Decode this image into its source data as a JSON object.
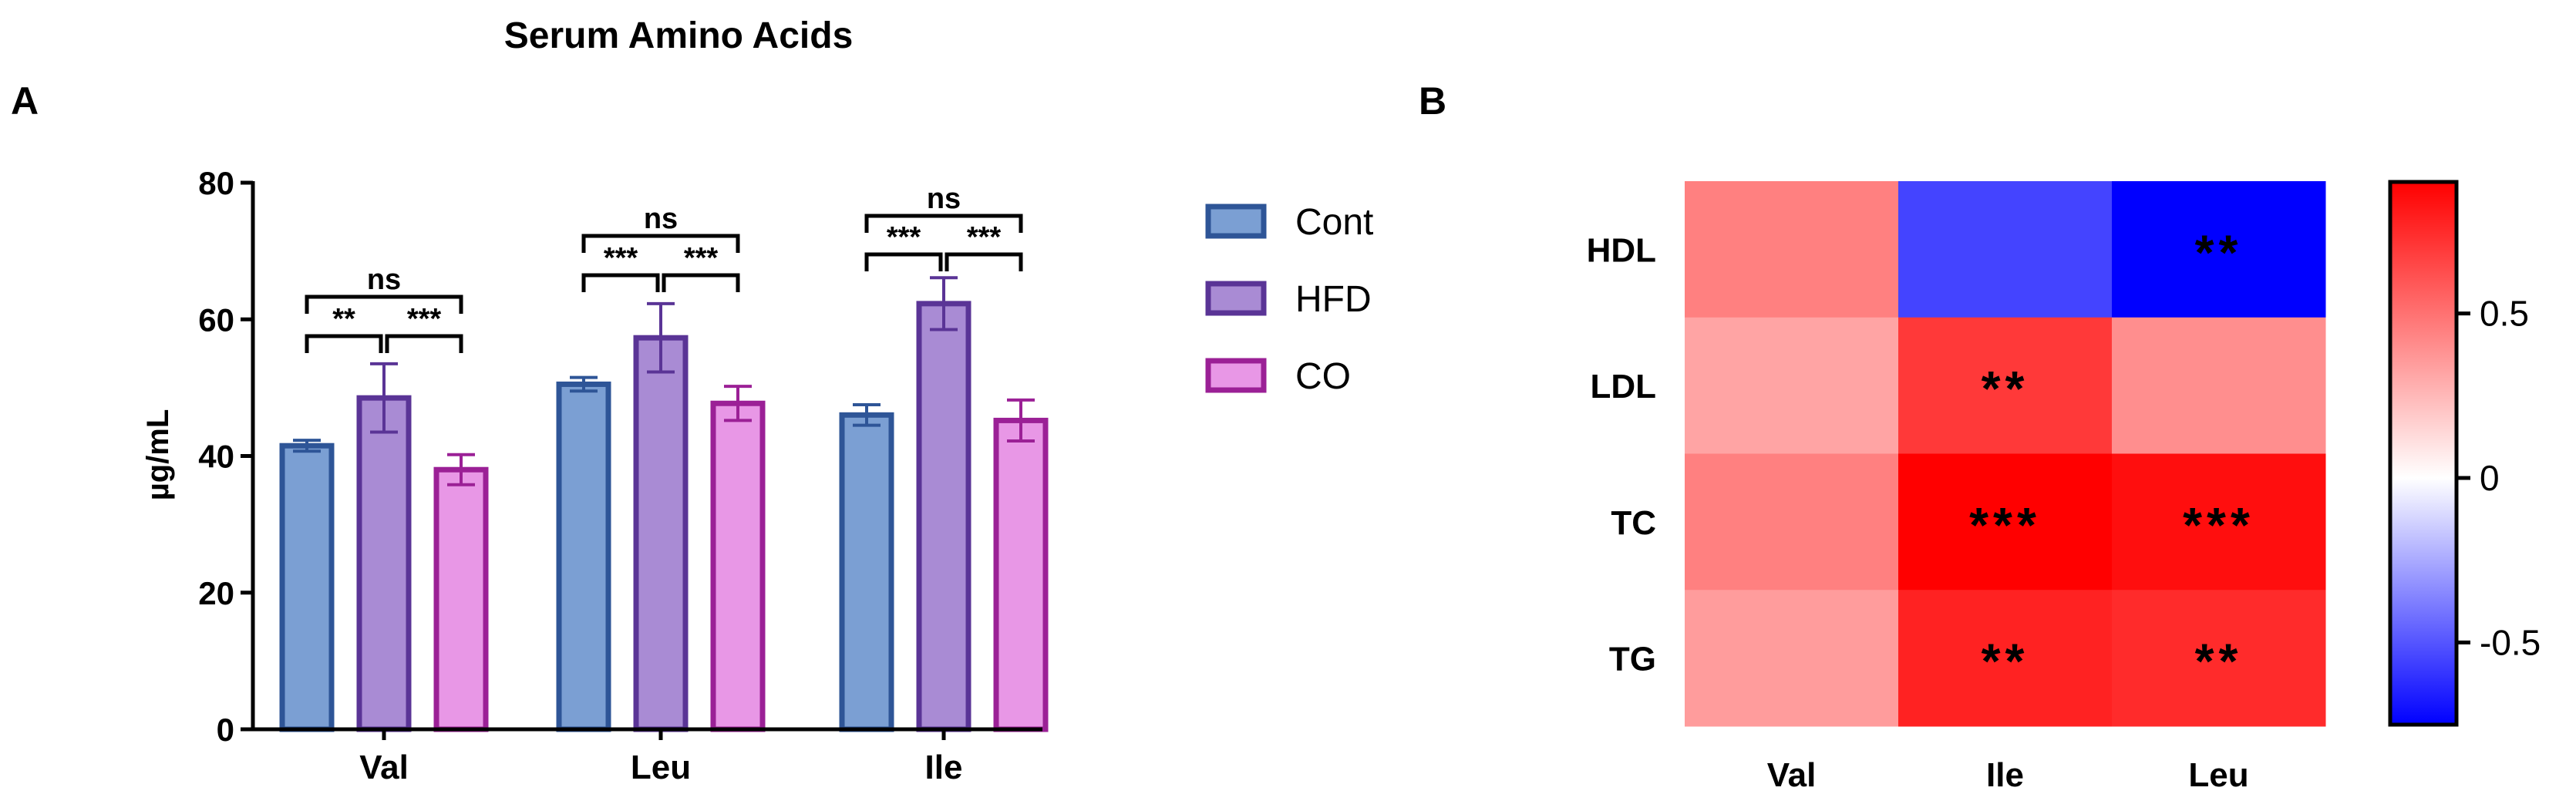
{
  "figure": {
    "panel_a_letter": "A",
    "panel_b_letter": "B"
  },
  "chart_data": [
    {
      "type": "bar",
      "panel": "A",
      "title": "Serum Amino Acids",
      "xlabel": "",
      "ylabel": "µg/mL",
      "ylim": [
        0,
        80
      ],
      "yticks": [
        0,
        20,
        40,
        60,
        80
      ],
      "categories": [
        "Val",
        "Leu",
        "Ile"
      ],
      "series": [
        {
          "name": "Cont",
          "values": [
            41.5,
            50.5,
            46.0
          ],
          "errors": [
            0.8,
            1.0,
            1.5
          ],
          "fill": "#7b9fd3",
          "stroke": "#2e5597"
        },
        {
          "name": "HFD",
          "values": [
            48.5,
            57.3,
            62.3
          ],
          "errors": [
            5.0,
            5.0,
            3.8
          ],
          "fill": "#a98bd4",
          "stroke": "#5a3496"
        },
        {
          "name": "CO",
          "values": [
            38.0,
            47.7,
            45.2
          ],
          "errors": [
            2.2,
            2.5,
            3.0
          ],
          "fill": "#e897e6",
          "stroke": "#9b2096"
        }
      ],
      "legend_position": "right",
      "significance": [
        {
          "category": "Val",
          "pair": [
            "Cont",
            "HFD"
          ],
          "label": "**"
        },
        {
          "category": "Val",
          "pair": [
            "HFD",
            "CO"
          ],
          "label": "***"
        },
        {
          "category": "Val",
          "pair": [
            "Cont",
            "CO"
          ],
          "label": "ns"
        },
        {
          "category": "Leu",
          "pair": [
            "Cont",
            "HFD"
          ],
          "label": "***"
        },
        {
          "category": "Leu",
          "pair": [
            "HFD",
            "CO"
          ],
          "label": "***"
        },
        {
          "category": "Leu",
          "pair": [
            "Cont",
            "CO"
          ],
          "label": "ns"
        },
        {
          "category": "Ile",
          "pair": [
            "Cont",
            "HFD"
          ],
          "label": "***"
        },
        {
          "category": "Ile",
          "pair": [
            "HFD",
            "CO"
          ],
          "label": "***"
        },
        {
          "category": "Ile",
          "pair": [
            "Cont",
            "CO"
          ],
          "label": "ns"
        }
      ]
    },
    {
      "type": "heatmap",
      "panel": "B",
      "rows": [
        "HDL",
        "LDL",
        "TC",
        "TG"
      ],
      "columns": [
        "Val",
        "Ile",
        "Leu"
      ],
      "values": [
        [
          0.45,
          -0.55,
          -0.95
        ],
        [
          0.32,
          0.7,
          0.4
        ],
        [
          0.45,
          0.95,
          0.85
        ],
        [
          0.35,
          0.78,
          0.75
        ]
      ],
      "annotations": [
        [
          "",
          "",
          "**"
        ],
        [
          "",
          "**",
          ""
        ],
        [
          "",
          "***",
          "***"
        ],
        [
          "",
          "**",
          "**"
        ]
      ],
      "colorbar": {
        "range": [
          -0.75,
          0.9
        ],
        "ticks": [
          0.5,
          0,
          -0.5
        ],
        "tick_labels": [
          "0.5",
          "0",
          "-0.5"
        ],
        "colors": {
          "low": "#0000ff",
          "mid": "#ffffff",
          "high": "#ff0000"
        }
      }
    }
  ]
}
